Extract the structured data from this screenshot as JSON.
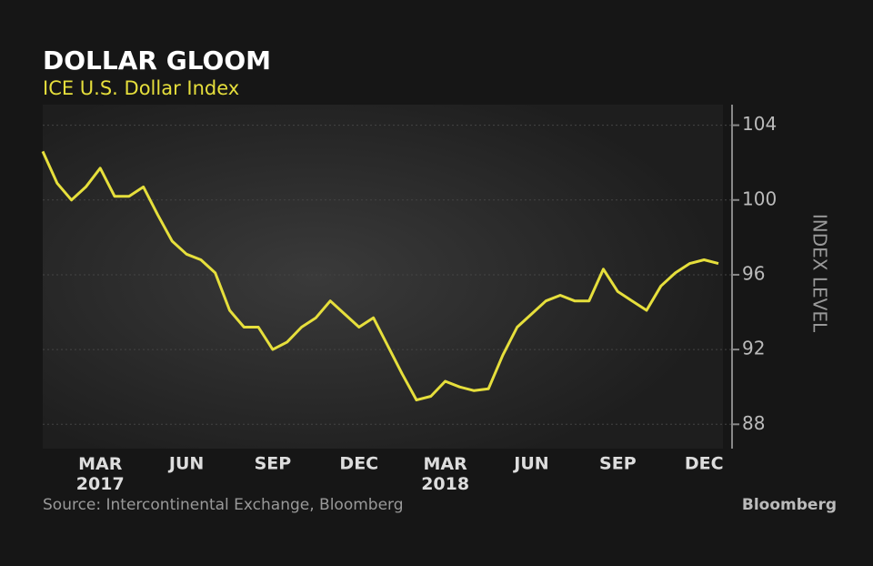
{
  "chart_data": {
    "type": "line",
    "title": "DOLLAR GLOOM",
    "subtitle": "ICE U.S. Dollar Index",
    "y_label": "INDEX LEVEL",
    "source": "Source: Intercontinental Exchange, Bloomberg",
    "brand": "Bloomberg",
    "color": "#e6df3c",
    "categories": [
      null,
      null,
      null,
      null,
      "MAR 2017",
      null,
      null,
      null,
      null,
      null,
      "JUN",
      null,
      null,
      null,
      null,
      null,
      "SEP",
      null,
      null,
      null,
      null,
      null,
      "DEC",
      null,
      null,
      null,
      null,
      null,
      "MAR 2018",
      null,
      null,
      null,
      null,
      null,
      "JUN",
      null,
      null,
      null,
      null,
      null,
      "SEP",
      null,
      null,
      null,
      null,
      null,
      "DEC",
      null
    ],
    "values": [
      102.6,
      100.9,
      100.0,
      100.7,
      101.7,
      100.2,
      100.2,
      100.7,
      99.2,
      97.8,
      97.1,
      96.8,
      96.1,
      94.1,
      93.2,
      93.2,
      92.0,
      92.4,
      93.2,
      93.7,
      94.6,
      93.9,
      93.2,
      93.7,
      92.2,
      90.7,
      89.3,
      89.5,
      90.3,
      90.0,
      89.8,
      89.9,
      91.7,
      93.2,
      93.9,
      94.6,
      94.9,
      94.6,
      94.6,
      96.3,
      95.1,
      94.6,
      94.1,
      95.4,
      96.1,
      96.6,
      96.8,
      96.6
    ],
    "ylim": [
      86.7,
      105.1
    ],
    "yticks": [
      88,
      92,
      96,
      100,
      104
    ],
    "grid": true
  }
}
